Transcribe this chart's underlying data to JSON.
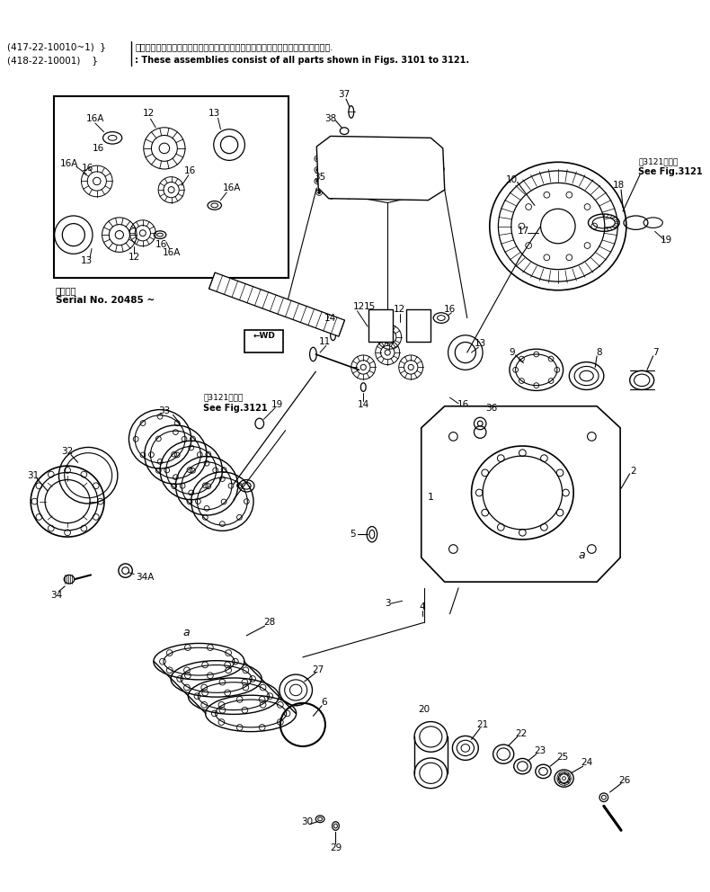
{
  "bg_color": "#ffffff",
  "fig_width": 7.9,
  "fig_height": 9.92,
  "dpi": 100,
  "header1_left": "(417-22-10010~1)  }",
  "header2_left": "(418-22-10001)    }",
  "header1_right": "これらのアセンブリの構成部品は第３１０１図から第３１２１図の部品を含みます.",
  "header2_right": ": These assemblies consist of all parts shown in Figs. 3101 to 3121.",
  "serial_label1": "適用号等",
  "serial_label2": "Serial No. 20485 ~",
  "fig3121_ja": "第3121図参照",
  "fig3121_en1": "See Fig.3121",
  "fig3121_en2": "See Fig.3121"
}
